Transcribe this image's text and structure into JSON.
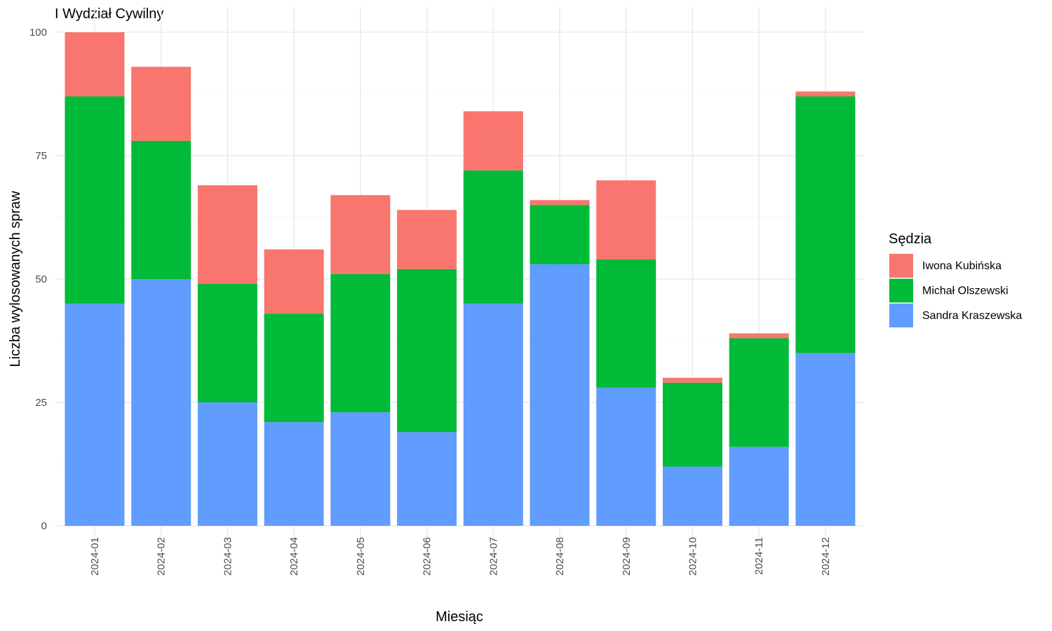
{
  "chart_data": {
    "type": "bar",
    "stacked": true,
    "title": "I Wydział Cywilny",
    "xlabel": "Miesiąc",
    "ylabel": "Liczba wylosowanych spraw",
    "ylim": [
      0,
      100
    ],
    "yticks": [
      0,
      25,
      50,
      75,
      100
    ],
    "grid": true,
    "legend": {
      "title": "Sędzia",
      "position": "right"
    },
    "categories": [
      "2024-01",
      "2024-02",
      "2024-03",
      "2024-04",
      "2024-05",
      "2024-06",
      "2024-07",
      "2024-08",
      "2024-09",
      "2024-10",
      "2024-11",
      "2024-12"
    ],
    "series": [
      {
        "name": "Sandra Kraszewska",
        "color": "#619CFF",
        "values": [
          45,
          50,
          25,
          21,
          23,
          19,
          45,
          53,
          28,
          12,
          16,
          35
        ]
      },
      {
        "name": "Michał Olszewski",
        "color": "#00BA38",
        "values": [
          42,
          28,
          24,
          22,
          28,
          33,
          27,
          12,
          26,
          17,
          22,
          52
        ]
      },
      {
        "name": "Iwona Kubińska",
        "color": "#F8766D",
        "values": [
          13,
          15,
          20,
          13,
          16,
          12,
          12,
          1,
          16,
          1,
          1,
          1
        ]
      }
    ],
    "legend_order": [
      "Iwona Kubińska",
      "Michał Olszewski",
      "Sandra Kraszewska"
    ]
  }
}
